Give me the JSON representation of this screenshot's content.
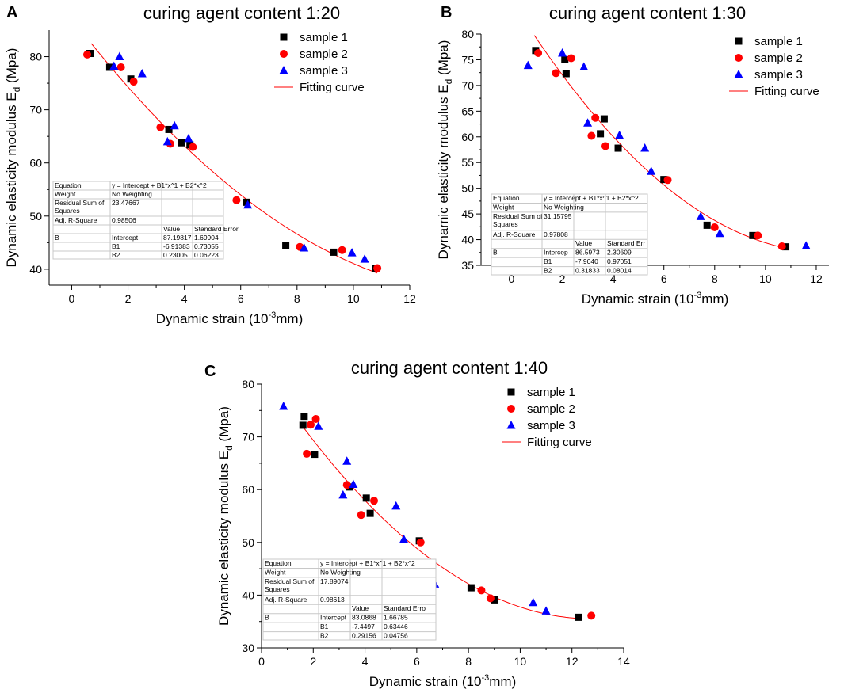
{
  "colors": {
    "sample1": "#000000",
    "sample2": "#ff0000",
    "sample3": "#0000ff",
    "fit": "#ff0000",
    "axis": "#000000",
    "table_line": "#c8c8c8"
  },
  "chart_data": [
    {
      "panel": "A",
      "type": "scatter",
      "title": "curing agent content 1:20",
      "xlabel": "Dynamic strain (10",
      "xlabel_sup": "-3",
      "xlabel_tail": "mm)",
      "ylabel": "Dynamic elasticity modulus E",
      "ylabel_sub": "d",
      "ylabel_tail": " (Mpa)",
      "xlim": [
        -0.8,
        12
      ],
      "ylim": [
        37,
        85
      ],
      "xticks": [
        0,
        2,
        4,
        6,
        8,
        10,
        12
      ],
      "xtick_labels": [
        "0",
        "2",
        "4",
        "6",
        "8",
        "10",
        "12"
      ],
      "yticks": [
        40,
        50,
        60,
        70,
        80
      ],
      "ytick_labels": [
        "40",
        "50",
        "60",
        "70",
        "80"
      ],
      "legend": [
        "sample 1",
        "sample 2",
        "sample 3",
        "Fitting curve"
      ],
      "series": [
        {
          "name": "sample 1",
          "marker": "square",
          "x": [
            0.65,
            1.35,
            2.1,
            3.45,
            3.9,
            4.2,
            6.2,
            7.6,
            9.3,
            10.8
          ],
          "y": [
            80.6,
            78.0,
            75.8,
            66.3,
            63.8,
            63.4,
            52.6,
            44.5,
            43.2,
            40.1
          ]
        },
        {
          "name": "sample 2",
          "marker": "circle",
          "x": [
            0.55,
            1.75,
            2.2,
            3.15,
            3.5,
            4.3,
            5.85,
            8.1,
            9.6,
            10.85
          ],
          "y": [
            80.4,
            78.0,
            75.3,
            66.7,
            63.6,
            63.0,
            53.0,
            44.2,
            43.6,
            40.2
          ]
        },
        {
          "name": "sample 3",
          "marker": "triangle",
          "x": [
            1.5,
            1.7,
            2.5,
            3.4,
            3.65,
            4.15,
            6.25,
            8.25,
            9.95,
            10.4
          ],
          "y": [
            78.2,
            80.0,
            76.8,
            64.0,
            67.0,
            64.6,
            52.1,
            44.0,
            43.1,
            41.9
          ]
        }
      ],
      "fit": {
        "name": "Fitting curve",
        "intercept": 87.19817,
        "b1": -6.91383,
        "b2": 0.23005,
        "x_range": [
          0.7,
          10.85
        ]
      },
      "stats_table": [
        [
          "Equation",
          "y = Intercept + B1*x^1 + B2*x^2",
          "",
          ""
        ],
        [
          "Weight",
          "No Weighting",
          "",
          ""
        ],
        [
          "Residual Sum of Squares",
          "23.47667",
          "",
          ""
        ],
        [
          "Adj. R-Square",
          "0.98506",
          "",
          ""
        ],
        [
          "",
          "",
          "Value",
          "Standard Error"
        ],
        [
          "B",
          "Intercept",
          "87.19817",
          "1.69904"
        ],
        [
          "",
          "B1",
          "-6.91383",
          "0.73055"
        ],
        [
          "",
          "B2",
          "0.23005",
          "0.06223"
        ]
      ]
    },
    {
      "panel": "B",
      "type": "scatter",
      "title": "curing agent content 1:30",
      "xlabel": "Dynamic strain (10",
      "xlabel_sup": "-3",
      "xlabel_tail": "mm)",
      "ylabel": "Dynamic elasticity modulus E",
      "ylabel_sub": "d",
      "ylabel_tail": " (Mpa)",
      "xlim": [
        -1.2,
        12.5
      ],
      "ylim": [
        35,
        80
      ],
      "xticks": [
        0,
        2,
        4,
        6,
        8,
        10,
        12
      ],
      "xtick_labels": [
        "0",
        "2",
        "4",
        "6",
        "8",
        "10",
        "12"
      ],
      "yticks": [
        35,
        40,
        45,
        50,
        55,
        60,
        65,
        70,
        75,
        80
      ],
      "ytick_labels": [
        "35",
        "40",
        "45",
        "50",
        "55",
        "60",
        "65",
        "70",
        "75",
        "80"
      ],
      "legend": [
        "sample 1",
        "sample 2",
        "sample 3",
        "Fitting curve"
      ],
      "series": [
        {
          "name": "sample 1",
          "marker": "square",
          "x": [
            0.95,
            2.1,
            2.15,
            3.5,
            3.65,
            4.2,
            6.0,
            7.7,
            9.5,
            10.8
          ],
          "y": [
            76.8,
            75.0,
            72.3,
            60.6,
            63.5,
            57.8,
            51.7,
            42.8,
            40.8,
            38.6
          ]
        },
        {
          "name": "sample 2",
          "marker": "circle",
          "x": [
            1.05,
            1.75,
            2.35,
            3.15,
            3.3,
            3.7,
            6.15,
            8.0,
            9.7,
            10.65
          ],
          "y": [
            76.3,
            72.4,
            75.3,
            60.2,
            63.7,
            58.2,
            51.6,
            42.4,
            40.8,
            38.7
          ]
        },
        {
          "name": "sample 3",
          "marker": "triangle",
          "x": [
            0.65,
            2.0,
            2.85,
            3.0,
            4.25,
            5.25,
            5.5,
            7.45,
            8.2,
            11.6
          ],
          "y": [
            73.9,
            76.3,
            73.6,
            62.7,
            60.3,
            57.8,
            53.3,
            44.5,
            41.2,
            38.8
          ]
        }
      ],
      "fit": {
        "name": "Fitting curve",
        "intercept": 86.5973,
        "b1": -7.904,
        "b2": 0.31833,
        "x_range": [
          0.9,
          10.85
        ]
      },
      "stats_table": [
        [
          "Equation",
          "y = Intercept + B1*x^1 + B2*x^2",
          "",
          ""
        ],
        [
          "Weight",
          "No Weighting",
          "",
          ""
        ],
        [
          "Residual Sum of Squares",
          "31.15795",
          "",
          ""
        ],
        [
          "Adj. R-Square",
          "0.97808",
          "",
          ""
        ],
        [
          "",
          "",
          "Value",
          "Standard Err"
        ],
        [
          "B",
          "Intercep",
          "86.5973",
          "2.30609"
        ],
        [
          "",
          "B1",
          "-7.9040",
          "0.97051"
        ],
        [
          "",
          "B2",
          "0.31833",
          "0.08014"
        ]
      ]
    },
    {
      "panel": "C",
      "type": "scatter",
      "title": "curing agent content 1:40",
      "xlabel": "Dynamic strain (10",
      "xlabel_sup": "-3",
      "xlabel_tail": "mm)",
      "ylabel": "Dynamic elasticity modulus E",
      "ylabel_sub": "d",
      "ylabel_tail": " (Mpa)",
      "xlim": [
        0,
        14
      ],
      "ylim": [
        30,
        80
      ],
      "xticks": [
        0,
        2,
        4,
        6,
        8,
        10,
        12,
        14
      ],
      "xtick_labels": [
        "0",
        "2",
        "4",
        "6",
        "8",
        "10",
        "12",
        "14"
      ],
      "yticks": [
        30,
        40,
        50,
        60,
        70,
        80
      ],
      "ytick_labels": [
        "30",
        "40",
        "50",
        "60",
        "70",
        "80"
      ],
      "legend": [
        "sample 1",
        "sample 2",
        "sample 3",
        "Fitting curve"
      ],
      "series": [
        {
          "name": "sample 1",
          "marker": "square",
          "x": [
            1.6,
            1.65,
            2.05,
            3.4,
            4.05,
            4.2,
            6.1,
            8.1,
            9.0,
            12.25
          ],
          "y": [
            72.2,
            73.9,
            66.7,
            60.5,
            58.4,
            55.5,
            50.3,
            41.4,
            39.1,
            35.8
          ]
        },
        {
          "name": "sample 2",
          "marker": "circle",
          "x": [
            1.75,
            1.9,
            2.1,
            3.3,
            3.85,
            4.35,
            6.15,
            8.5,
            8.85,
            12.75
          ],
          "y": [
            66.8,
            72.3,
            73.4,
            60.9,
            55.2,
            57.9,
            50.0,
            40.9,
            39.4,
            36.1
          ]
        },
        {
          "name": "sample 3",
          "marker": "triangle",
          "x": [
            0.85,
            2.2,
            3.15,
            3.3,
            3.55,
            5.2,
            5.5,
            6.7,
            10.5,
            11.0
          ],
          "y": [
            75.8,
            72.0,
            59.0,
            65.4,
            61.0,
            56.9,
            50.6,
            42.1,
            38.6,
            37.0
          ]
        }
      ],
      "fit": {
        "name": "Fitting curve",
        "intercept": 83.0868,
        "b1": -7.4497,
        "b2": 0.29156,
        "x_range": [
          1.6,
          12.3
        ]
      },
      "stats_table": [
        [
          "Equation",
          "y = Intercept + B1*x^1 + B2*x^2",
          "",
          ""
        ],
        [
          "Weight",
          "No Weighting",
          "",
          ""
        ],
        [
          "Residual Sum of Squares",
          "17.89074",
          "",
          ""
        ],
        [
          "Adj. R-Square",
          "0.98613",
          "",
          ""
        ],
        [
          "",
          "",
          "Value",
          "Standard Erro"
        ],
        [
          "B",
          "Intercept",
          "83.0868",
          "1.66785"
        ],
        [
          "",
          "B1",
          "-7.4497",
          "0.63446"
        ],
        [
          "",
          "B2",
          "0.29156",
          "0.04756"
        ]
      ]
    }
  ]
}
